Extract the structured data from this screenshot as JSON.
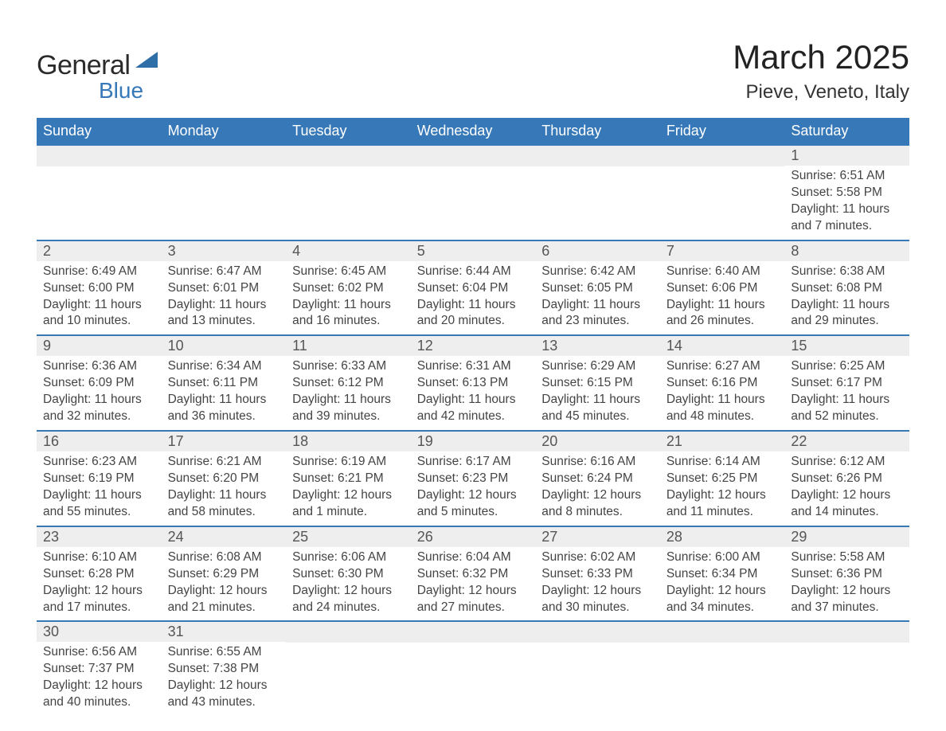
{
  "logo": {
    "text1": "General",
    "text2": "Blue",
    "tri_color": "#2f6fa8"
  },
  "title": "March 2025",
  "location": "Pieve, Veneto, Italy",
  "day_headers": [
    "Sunday",
    "Monday",
    "Tuesday",
    "Wednesday",
    "Thursday",
    "Friday",
    "Saturday"
  ],
  "layout": {
    "header_bg": "#3678b8",
    "header_fg": "#ffffff",
    "row_sep": "#3678b8",
    "daynum_bg": "#eeeeee",
    "page_bg": "#ffffff",
    "leading_blanks": 6
  },
  "labels": {
    "sunrise": "Sunrise: ",
    "sunset": "Sunset: ",
    "daylight": "Daylight: "
  },
  "days": [
    {
      "n": 1,
      "sr": "6:51 AM",
      "ss": "5:58 PM",
      "dl": "11 hours and 7 minutes."
    },
    {
      "n": 2,
      "sr": "6:49 AM",
      "ss": "6:00 PM",
      "dl": "11 hours and 10 minutes."
    },
    {
      "n": 3,
      "sr": "6:47 AM",
      "ss": "6:01 PM",
      "dl": "11 hours and 13 minutes."
    },
    {
      "n": 4,
      "sr": "6:45 AM",
      "ss": "6:02 PM",
      "dl": "11 hours and 16 minutes."
    },
    {
      "n": 5,
      "sr": "6:44 AM",
      "ss": "6:04 PM",
      "dl": "11 hours and 20 minutes."
    },
    {
      "n": 6,
      "sr": "6:42 AM",
      "ss": "6:05 PM",
      "dl": "11 hours and 23 minutes."
    },
    {
      "n": 7,
      "sr": "6:40 AM",
      "ss": "6:06 PM",
      "dl": "11 hours and 26 minutes."
    },
    {
      "n": 8,
      "sr": "6:38 AM",
      "ss": "6:08 PM",
      "dl": "11 hours and 29 minutes."
    },
    {
      "n": 9,
      "sr": "6:36 AM",
      "ss": "6:09 PM",
      "dl": "11 hours and 32 minutes."
    },
    {
      "n": 10,
      "sr": "6:34 AM",
      "ss": "6:11 PM",
      "dl": "11 hours and 36 minutes."
    },
    {
      "n": 11,
      "sr": "6:33 AM",
      "ss": "6:12 PM",
      "dl": "11 hours and 39 minutes."
    },
    {
      "n": 12,
      "sr": "6:31 AM",
      "ss": "6:13 PM",
      "dl": "11 hours and 42 minutes."
    },
    {
      "n": 13,
      "sr": "6:29 AM",
      "ss": "6:15 PM",
      "dl": "11 hours and 45 minutes."
    },
    {
      "n": 14,
      "sr": "6:27 AM",
      "ss": "6:16 PM",
      "dl": "11 hours and 48 minutes."
    },
    {
      "n": 15,
      "sr": "6:25 AM",
      "ss": "6:17 PM",
      "dl": "11 hours and 52 minutes."
    },
    {
      "n": 16,
      "sr": "6:23 AM",
      "ss": "6:19 PM",
      "dl": "11 hours and 55 minutes."
    },
    {
      "n": 17,
      "sr": "6:21 AM",
      "ss": "6:20 PM",
      "dl": "11 hours and 58 minutes."
    },
    {
      "n": 18,
      "sr": "6:19 AM",
      "ss": "6:21 PM",
      "dl": "12 hours and 1 minute."
    },
    {
      "n": 19,
      "sr": "6:17 AM",
      "ss": "6:23 PM",
      "dl": "12 hours and 5 minutes."
    },
    {
      "n": 20,
      "sr": "6:16 AM",
      "ss": "6:24 PM",
      "dl": "12 hours and 8 minutes."
    },
    {
      "n": 21,
      "sr": "6:14 AM",
      "ss": "6:25 PM",
      "dl": "12 hours and 11 minutes."
    },
    {
      "n": 22,
      "sr": "6:12 AM",
      "ss": "6:26 PM",
      "dl": "12 hours and 14 minutes."
    },
    {
      "n": 23,
      "sr": "6:10 AM",
      "ss": "6:28 PM",
      "dl": "12 hours and 17 minutes."
    },
    {
      "n": 24,
      "sr": "6:08 AM",
      "ss": "6:29 PM",
      "dl": "12 hours and 21 minutes."
    },
    {
      "n": 25,
      "sr": "6:06 AM",
      "ss": "6:30 PM",
      "dl": "12 hours and 24 minutes."
    },
    {
      "n": 26,
      "sr": "6:04 AM",
      "ss": "6:32 PM",
      "dl": "12 hours and 27 minutes."
    },
    {
      "n": 27,
      "sr": "6:02 AM",
      "ss": "6:33 PM",
      "dl": "12 hours and 30 minutes."
    },
    {
      "n": 28,
      "sr": "6:00 AM",
      "ss": "6:34 PM",
      "dl": "12 hours and 34 minutes."
    },
    {
      "n": 29,
      "sr": "5:58 AM",
      "ss": "6:36 PM",
      "dl": "12 hours and 37 minutes."
    },
    {
      "n": 30,
      "sr": "6:56 AM",
      "ss": "7:37 PM",
      "dl": "12 hours and 40 minutes."
    },
    {
      "n": 31,
      "sr": "6:55 AM",
      "ss": "7:38 PM",
      "dl": "12 hours and 43 minutes."
    }
  ]
}
